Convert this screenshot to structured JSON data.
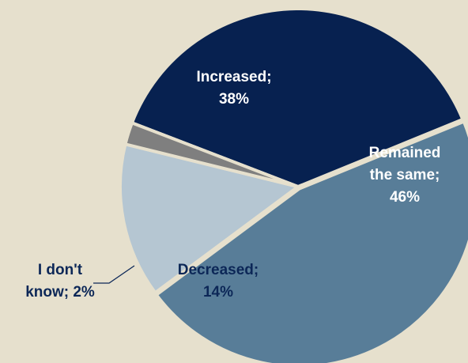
{
  "chart_data": {
    "type": "pie",
    "slices": [
      {
        "label": "Increased",
        "value": 38,
        "color": "#072150",
        "label_color": "#ffffff",
        "label_lines": [
          "Increased;",
          "38%"
        ]
      },
      {
        "label": "Remained the same",
        "value": 46,
        "color": "#587d98",
        "label_color": "#ffffff",
        "label_lines": [
          "Remained",
          "the same;",
          "46%"
        ]
      },
      {
        "label": "Decreased",
        "value": 14,
        "color": "#b5c6d2",
        "label_color": "#0c2757",
        "label_lines": [
          "Decreased;",
          "14%"
        ]
      },
      {
        "label": "I don't know",
        "value": 2,
        "color": "#7f7f7f",
        "label_color": "#0c2757",
        "label_lines": [
          "I don't",
          "know; 2%"
        ]
      }
    ],
    "separator_color": "#e6e0cd",
    "background": "#e6e0cd"
  }
}
